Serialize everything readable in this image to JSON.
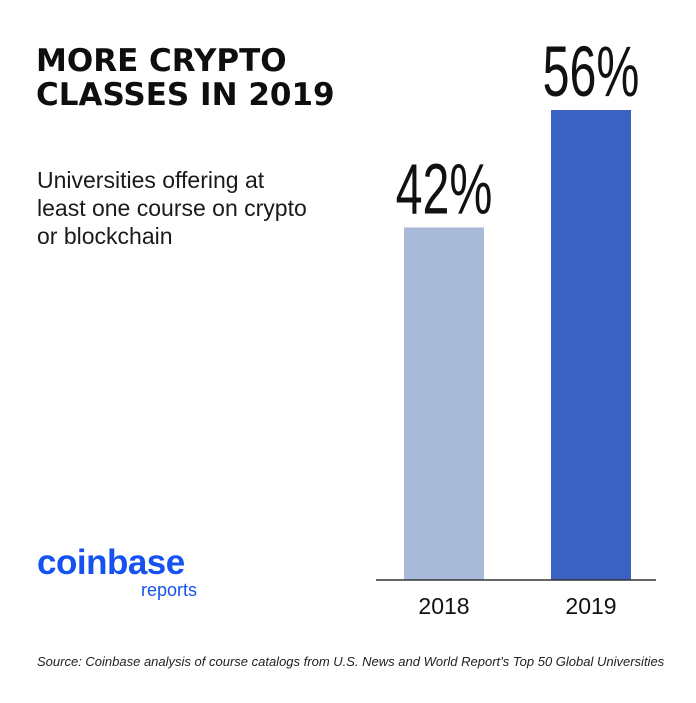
{
  "header": {
    "title": "MORE CRYPTO CLASSES IN 2019",
    "subtitle": "Universities offering at least one course on crypto or blockchain"
  },
  "logo": {
    "brand": "coinbase",
    "sub": "reports",
    "color": "#1652f0"
  },
  "footer": {
    "source": "Source: Coinbase analysis of course catalogs from U.S. News and World Report’s Top 50 Global Universities"
  },
  "chart_data": {
    "type": "bar",
    "categories": [
      "2018",
      "2019"
    ],
    "values": [
      42,
      56
    ],
    "value_labels": [
      "42%",
      "56%"
    ],
    "unit": "%",
    "ylim": [
      0,
      56
    ],
    "grid": false,
    "legend": "none",
    "colors": [
      "#a8bad7",
      "#3c62c4"
    ],
    "axis_color": "#333333",
    "label_color": "#111111"
  }
}
